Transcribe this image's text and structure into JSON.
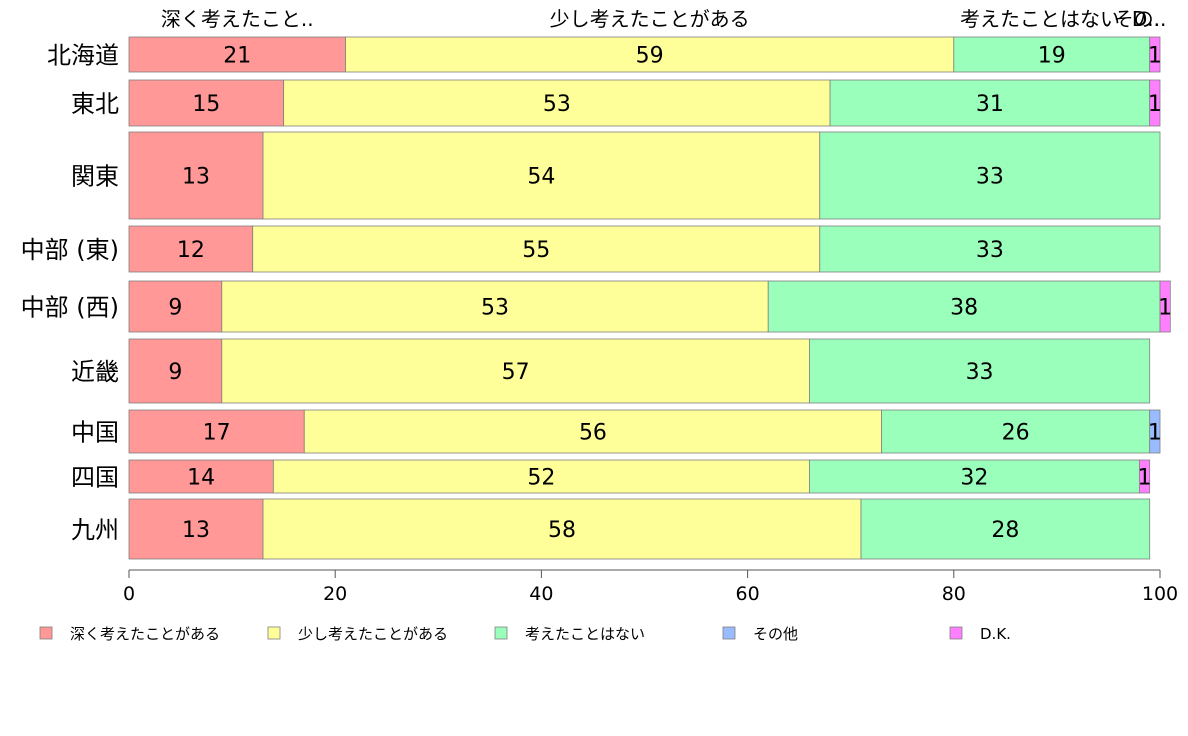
{
  "chart_data": {
    "type": "bar",
    "orientation": "horizontal",
    "stacked": true,
    "categories": [
      "北海道",
      "東北",
      "関東",
      "中部 (東)",
      "中部 (西)",
      "近畿",
      "中国",
      "四国",
      "九州"
    ],
    "series": [
      {
        "name": "深く考えたことがある",
        "values": [
          21,
          15,
          13,
          12,
          9,
          9,
          17,
          14,
          13
        ],
        "color": "#ff9896"
      },
      {
        "name": "少し考えたことがある",
        "values": [
          59,
          53,
          54,
          55,
          53,
          57,
          56,
          52,
          58
        ],
        "color": "#ffff99"
      },
      {
        "name": "考えたことはない",
        "values": [
          19,
          31,
          33,
          33,
          38,
          33,
          26,
          32,
          28
        ],
        "color": "#99ffbb"
      },
      {
        "name": "その他",
        "values": [
          0,
          0,
          0,
          0,
          0,
          0,
          1,
          0,
          0
        ],
        "color": "#99bbff"
      },
      {
        "name": "D.K.",
        "values": [
          1,
          1,
          0,
          0,
          1,
          0,
          0,
          1,
          0
        ],
        "color": "#ff80ff"
      }
    ],
    "top_labels": [
      "深く考えたこと..",
      "少し考えたことがある",
      "考えたことはない",
      "その..",
      "D.."
    ],
    "xlim": [
      0,
      100
    ],
    "xticks": [
      0,
      20,
      40,
      60,
      80,
      100
    ],
    "legend_position": "bottom"
  }
}
